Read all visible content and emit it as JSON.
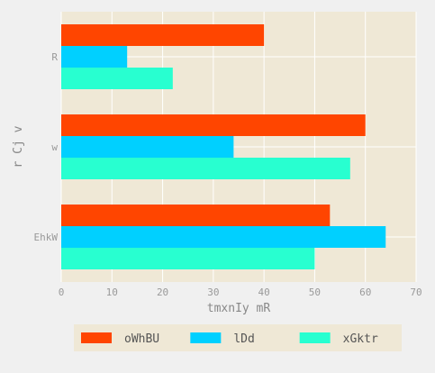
{
  "chart_data": {
    "type": "bar",
    "orientation": "horizontal",
    "title": "",
    "xlabel": "tmxnIy  mR",
    "ylabel": "r Cj v",
    "categories": [
      "R",
      "w",
      "EhkW"
    ],
    "series": [
      {
        "name": "oWhBU",
        "values": [
          40,
          60,
          53
        ],
        "color": "#ff4500"
      },
      {
        "name": "lDd",
        "values": [
          13,
          34,
          64
        ],
        "color": "#00d0ff"
      },
      {
        "name": "xGktr",
        "values": [
          22,
          57,
          50
        ],
        "color": "#28ffd0"
      }
    ],
    "xlim": [
      0,
      70
    ],
    "xticks": [
      0,
      10,
      20,
      30,
      40,
      50,
      60,
      70
    ],
    "grid": true,
    "legend_position": "bottom",
    "colors": {
      "plot_background": "#efe8d6",
      "page_background": "#f0f0f0",
      "grid": "#ffffff",
      "legend_background": "#efe8d6"
    }
  }
}
